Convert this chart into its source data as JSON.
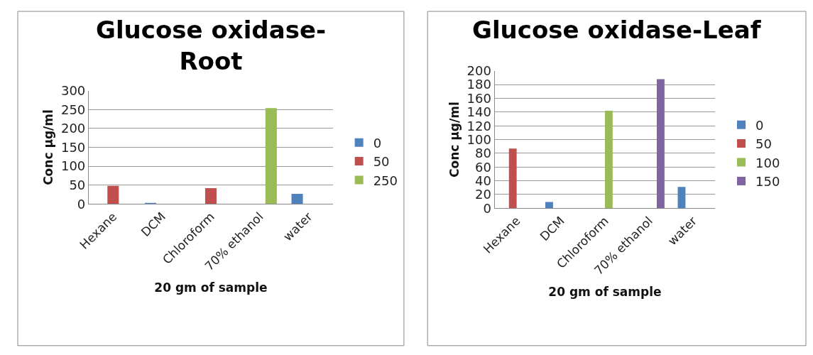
{
  "chart_data": [
    {
      "type": "bar",
      "title": "Glucose oxidase-\nRoot",
      "xlabel": "20 gm of sample",
      "ylabel": "Conc µg/ml",
      "categories": [
        "Hexane",
        "DCM",
        "Chloroform",
        "70% ethanol",
        "water"
      ],
      "series": [
        {
          "name": "0",
          "color": "#4f81bd",
          "values": [
            null,
            3,
            null,
            null,
            27
          ]
        },
        {
          "name": "50",
          "color": "#c0504d",
          "values": [
            48,
            null,
            42,
            null,
            null
          ]
        },
        {
          "name": "250",
          "color": "#9bbb59",
          "values": [
            null,
            null,
            null,
            254,
            null
          ]
        }
      ],
      "ylim": [
        0,
        300
      ],
      "yticks": [
        0,
        50,
        100,
        150,
        200,
        250,
        300
      ],
      "grid": "y",
      "legend": "right"
    },
    {
      "type": "bar",
      "title": "Glucose oxidase-Leaf",
      "xlabel": "20 gm of sample",
      "ylabel": "Conc µg/ml",
      "categories": [
        "Hexane",
        "DCM",
        "Chloroform",
        "70% ethanol",
        "water"
      ],
      "series": [
        {
          "name": "0",
          "color": "#4f81bd",
          "values": [
            null,
            9,
            null,
            null,
            31
          ]
        },
        {
          "name": "50",
          "color": "#c0504d",
          "values": [
            87,
            null,
            null,
            null,
            null
          ]
        },
        {
          "name": "100",
          "color": "#9bbb59",
          "values": [
            null,
            null,
            142,
            null,
            null
          ]
        },
        {
          "name": "150",
          "color": "#8064a2",
          "values": [
            null,
            null,
            null,
            188,
            null
          ]
        }
      ],
      "ylim": [
        0,
        200
      ],
      "yticks": [
        0,
        20,
        40,
        60,
        80,
        100,
        120,
        140,
        160,
        180,
        200
      ],
      "grid": "y",
      "legend": "right"
    }
  ]
}
